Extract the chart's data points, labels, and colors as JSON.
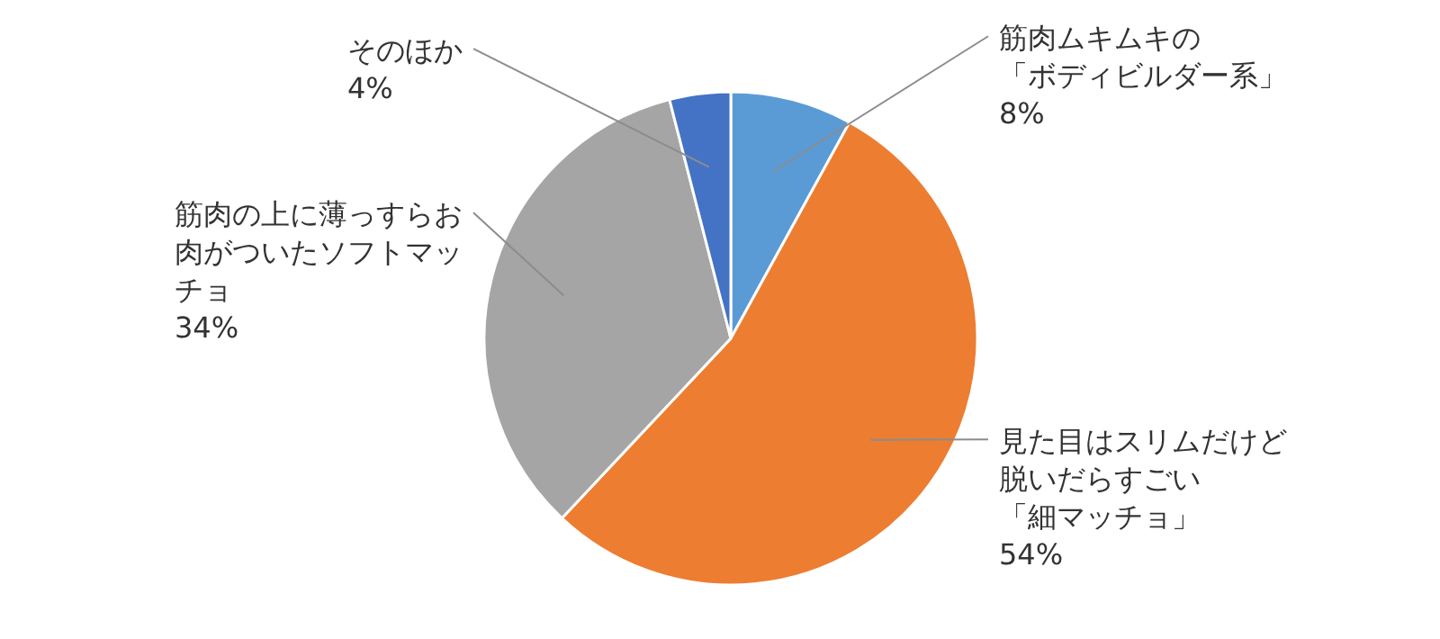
{
  "chart_data": {
    "type": "pie",
    "categories": [
      "筋肉ムキムキの「ボディビルダー系」",
      "見た目はスリムだけど脱いだらすごい「細マッチョ」",
      "筋肉の上に薄っすらお肉がついたソフトマッチョ",
      "そのほか"
    ],
    "values": [
      8,
      54,
      34,
      4
    ],
    "value_labels": [
      "8%",
      "54%",
      "34%",
      "4%"
    ],
    "colors": [
      "#5b9bd5",
      "#ed7d31",
      "#a5a5a5",
      "#4472c4"
    ]
  }
}
